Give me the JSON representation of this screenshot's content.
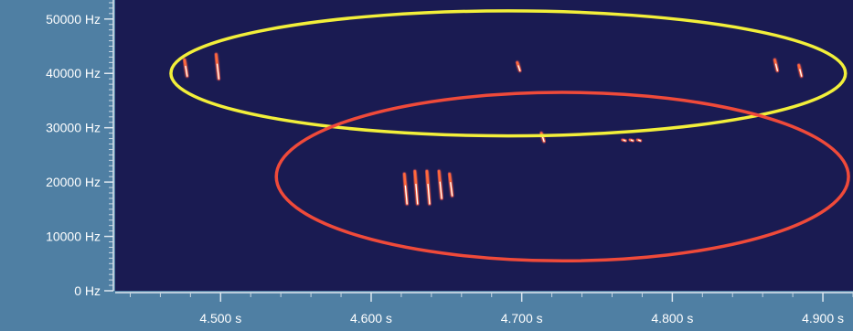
{
  "chart_data": {
    "type": "heatmap",
    "subtype": "spectrogram",
    "title": "",
    "xlabel": "",
    "ylabel": "",
    "x_unit": "s",
    "y_unit": "Hz",
    "xlim": [
      4.43,
      4.92
    ],
    "ylim": [
      0,
      53500
    ],
    "x_ticks": [
      {
        "value": 4.5,
        "label": "4.500 s"
      },
      {
        "value": 4.6,
        "label": "4.600 s"
      },
      {
        "value": 4.7,
        "label": "4.700 s"
      },
      {
        "value": 4.8,
        "label": "4.800 s"
      },
      {
        "value": 4.9,
        "label": "4.900 s"
      }
    ],
    "y_ticks": [
      {
        "value": 0,
        "label": "0 Hz"
      },
      {
        "value": 10000,
        "label": "10000 Hz"
      },
      {
        "value": 20000,
        "label": "20000 Hz"
      },
      {
        "value": 30000,
        "label": "30000 Hz"
      },
      {
        "value": 40000,
        "label": "40000 Hz"
      },
      {
        "value": 50000,
        "label": "50000 Hz"
      }
    ],
    "colors": {
      "plot_background": "#1a1b52",
      "axis_background": "#4f7fa3",
      "call_high": "#ffffff",
      "call_mid": "#ff6a3a",
      "call_low": "#c83a6a",
      "yellow_ellipse": "#f2ef3a",
      "red_ellipse": "#ef4a3a"
    },
    "calls": [
      {
        "t": 4.476,
        "f_start": 42500,
        "f_end": 39500
      },
      {
        "t": 4.497,
        "f_start": 43500,
        "f_end": 39000
      },
      {
        "t": 4.697,
        "f_start": 42000,
        "f_end": 40500
      },
      {
        "t": 4.713,
        "f_start": 29000,
        "f_end": 27500
      },
      {
        "t": 4.868,
        "f_start": 42500,
        "f_end": 40500
      },
      {
        "t": 4.884,
        "f_start": 41500,
        "f_end": 39500
      },
      {
        "t": 4.622,
        "f_start": 21500,
        "f_end": 16000
      },
      {
        "t": 4.629,
        "f_start": 22000,
        "f_end": 16000
      },
      {
        "t": 4.637,
        "f_start": 22000,
        "f_end": 16000
      },
      {
        "t": 4.645,
        "f_start": 22000,
        "f_end": 17000
      },
      {
        "t": 4.652,
        "f_start": 21500,
        "f_end": 17500
      },
      {
        "t": 4.767,
        "f_start": 27800,
        "f_end": 27600
      },
      {
        "t": 4.772,
        "f_start": 27800,
        "f_end": 27600
      },
      {
        "t": 4.777,
        "f_start": 27800,
        "f_end": 27600
      }
    ],
    "annotations": [
      {
        "shape": "ellipse",
        "color": "yellow",
        "t_center": 4.691,
        "f_center": 40000,
        "t_radius": 0.224,
        "f_radius": 11500
      },
      {
        "shape": "ellipse",
        "color": "red",
        "t_center": 4.727,
        "f_center": 21000,
        "t_radius": 0.19,
        "f_radius": 15500
      }
    ]
  }
}
